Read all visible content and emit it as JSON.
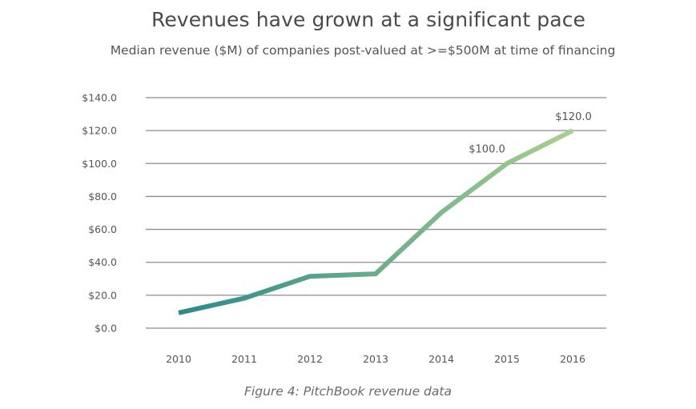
{
  "chart_data": {
    "type": "line",
    "title": "Revenues have grown at a significant pace",
    "subtitle": "Median revenue ($M) of companies post-valued at >=$500M at time of financing",
    "caption": "Figure 4: PitchBook revenue data",
    "xlabel": "",
    "ylabel": "",
    "categories": [
      "2010",
      "2011",
      "2012",
      "2013",
      "2014",
      "2015",
      "2016"
    ],
    "series": [
      {
        "name": "Median revenue ($M)",
        "values": [
          9.3,
          18.2,
          31.5,
          33.0,
          70.2,
          100.0,
          120.0
        ],
        "color_start": "#2a8a8c",
        "color_end": "#a9d08e"
      }
    ],
    "data_labels": [
      {
        "index": 5,
        "text": "$100.0"
      },
      {
        "index": 6,
        "text": "$120.0"
      }
    ],
    "yticks": [
      0,
      20,
      40,
      60,
      80,
      100,
      120,
      140
    ],
    "ytick_labels": [
      "$0.0",
      "$20.0",
      "$40.0",
      "$60.0",
      "$80.0",
      "$100.0",
      "$120.0",
      "$140.0"
    ],
    "ylim": [
      0,
      140
    ],
    "grid": true,
    "gridline_color": "#8c8c8c",
    "legend": "none"
  }
}
